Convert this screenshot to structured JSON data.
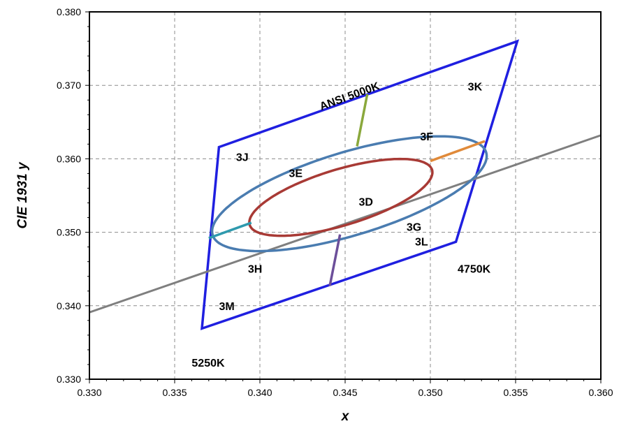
{
  "chart_data": {
    "type": "scatter",
    "xlabel": "x",
    "ylabel": "CIE 1931 y",
    "xlim": [
      0.33,
      0.36
    ],
    "ylim": [
      0.33,
      0.38
    ],
    "grid": true,
    "x_ticks": [
      "0.330",
      "0.335",
      "0.340",
      "0.345",
      "0.350",
      "0.355",
      "0.360"
    ],
    "y_ticks": [
      "0.330",
      "0.340",
      "0.350",
      "0.360",
      "0.370",
      "0.380"
    ],
    "colors": {
      "quadrangle": "#1f1fe0",
      "planckian": "#7f7f7f",
      "outer_ellipse": "#4a7cb0",
      "inner_ellipse": "#a83a35",
      "segment_green": "#8aa83c",
      "segment_orange": "#e08a3a",
      "segment_teal": "#2f9aae",
      "segment_purple": "#6c4f9a"
    },
    "series": [
      {
        "kind": "polygon",
        "key": "quadrangle",
        "points": [
          [
            0.3551,
            0.376
          ],
          [
            0.3515,
            0.3487
          ],
          [
            0.3366,
            0.3369
          ],
          [
            0.3376,
            0.3616
          ]
        ]
      },
      {
        "kind": "line",
        "key": "planckian",
        "points": [
          [
            0.33,
            0.3391
          ],
          [
            0.36,
            0.3632
          ]
        ]
      },
      {
        "kind": "ellipse_arc",
        "key": "outer_ellipse",
        "center": [
          0.34525,
          0.35525
        ],
        "a": 0.0087,
        "b": 0.0107,
        "tilt_deg": 24,
        "from_deg": 156,
        "to_deg": 530
      },
      {
        "kind": "ellipse_arc",
        "key": "inner_ellipse",
        "center": [
          0.34475,
          0.35475
        ],
        "a": 0.0058,
        "b": 0.0072,
        "tilt_deg": 24,
        "from_deg": 0,
        "to_deg": 360
      },
      {
        "kind": "line",
        "key": "segment_green",
        "points": [
          [
            0.3463,
            0.3688
          ],
          [
            0.3457,
            0.3617
          ]
        ]
      },
      {
        "kind": "line",
        "key": "segment_orange",
        "points": [
          [
            0.35,
            0.3597
          ],
          [
            0.3532,
            0.3624
          ]
        ]
      },
      {
        "kind": "line",
        "key": "segment_teal",
        "points": [
          [
            0.3395,
            0.3513
          ],
          [
            0.337,
            0.3492
          ]
        ]
      },
      {
        "kind": "line",
        "key": "segment_purple",
        "points": [
          [
            0.3447,
            0.3497
          ],
          [
            0.3441,
            0.3427
          ]
        ]
      }
    ],
    "annotations": [
      {
        "text": "ANSI 5000K",
        "x": 0.3436,
        "y": 0.3666,
        "rotate": -20
      },
      {
        "text": "3K",
        "x": 0.3522,
        "y": 0.3693
      },
      {
        "text": "3F",
        "x": 0.3494,
        "y": 0.3625
      },
      {
        "text": "3J",
        "x": 0.3386,
        "y": 0.3597
      },
      {
        "text": "3E",
        "x": 0.3417,
        "y": 0.3575
      },
      {
        "text": "3D",
        "x": 0.3458,
        "y": 0.3536
      },
      {
        "text": "3G",
        "x": 0.3486,
        "y": 0.3502
      },
      {
        "text": "3L",
        "x": 0.3491,
        "y": 0.3482
      },
      {
        "text": "4750K",
        "x": 0.3516,
        "y": 0.3445
      },
      {
        "text": "3H",
        "x": 0.3393,
        "y": 0.3445
      },
      {
        "text": "3M",
        "x": 0.3376,
        "y": 0.3394
      },
      {
        "text": "5250K",
        "x": 0.336,
        "y": 0.3317
      }
    ]
  }
}
